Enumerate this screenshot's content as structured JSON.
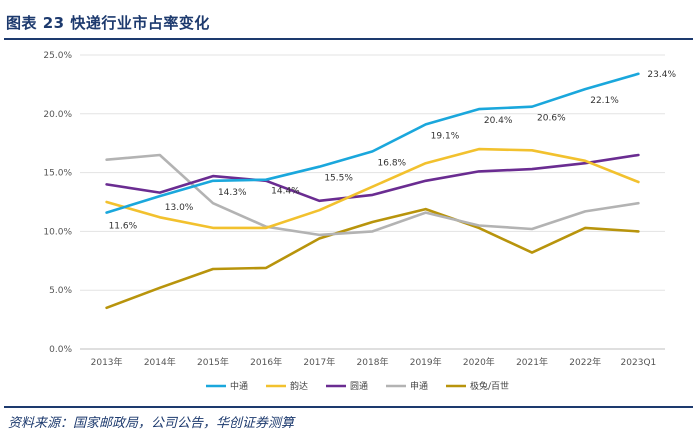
{
  "title": "图表 23 快递行业市占率变化",
  "source": "资料来源：国家邮政局，公司公告，华创证券测算",
  "chart_data": {
    "type": "line",
    "categories": [
      "2013年",
      "2014年",
      "2015年",
      "2016年",
      "2017年",
      "2018年",
      "2019年",
      "2020年",
      "2021年",
      "2022年",
      "2023Q1"
    ],
    "ylim": [
      0,
      25
    ],
    "yticks": [
      "0.0%",
      "5.0%",
      "10.0%",
      "15.0%",
      "20.0%",
      "25.0%"
    ],
    "grid": true,
    "legend_position": "bottom",
    "series": [
      {
        "name": "中通",
        "color": "#1aa7dc",
        "values": [
          11.6,
          13.0,
          14.3,
          14.4,
          15.5,
          16.8,
          19.1,
          20.4,
          20.6,
          22.1,
          23.4
        ],
        "labels": [
          "11.6%",
          "13.0%",
          "14.3%",
          "14.4%",
          "15.5%",
          "16.8%",
          "19.1%",
          "20.4%",
          "20.6%",
          "22.1%",
          "23.4%"
        ]
      },
      {
        "name": "韵达",
        "color": "#f2c12e",
        "values": [
          12.5,
          11.2,
          10.3,
          10.3,
          11.8,
          13.8,
          15.8,
          17.0,
          16.9,
          16.0,
          14.2
        ]
      },
      {
        "name": "圆通",
        "color": "#6a2c91",
        "values": [
          14.0,
          13.3,
          14.7,
          14.3,
          12.6,
          13.1,
          14.3,
          15.1,
          15.3,
          15.8,
          16.5
        ]
      },
      {
        "name": "申通",
        "color": "#b3b3b3",
        "values": [
          16.1,
          16.5,
          12.4,
          10.4,
          9.7,
          10.0,
          11.6,
          10.5,
          10.2,
          11.7,
          12.4
        ]
      },
      {
        "name": "极兔/百世",
        "color": "#b8940c",
        "values": [
          3.5,
          5.2,
          6.8,
          6.9,
          9.4,
          10.8,
          11.9,
          10.3,
          8.2,
          10.3,
          10.0
        ]
      }
    ]
  }
}
